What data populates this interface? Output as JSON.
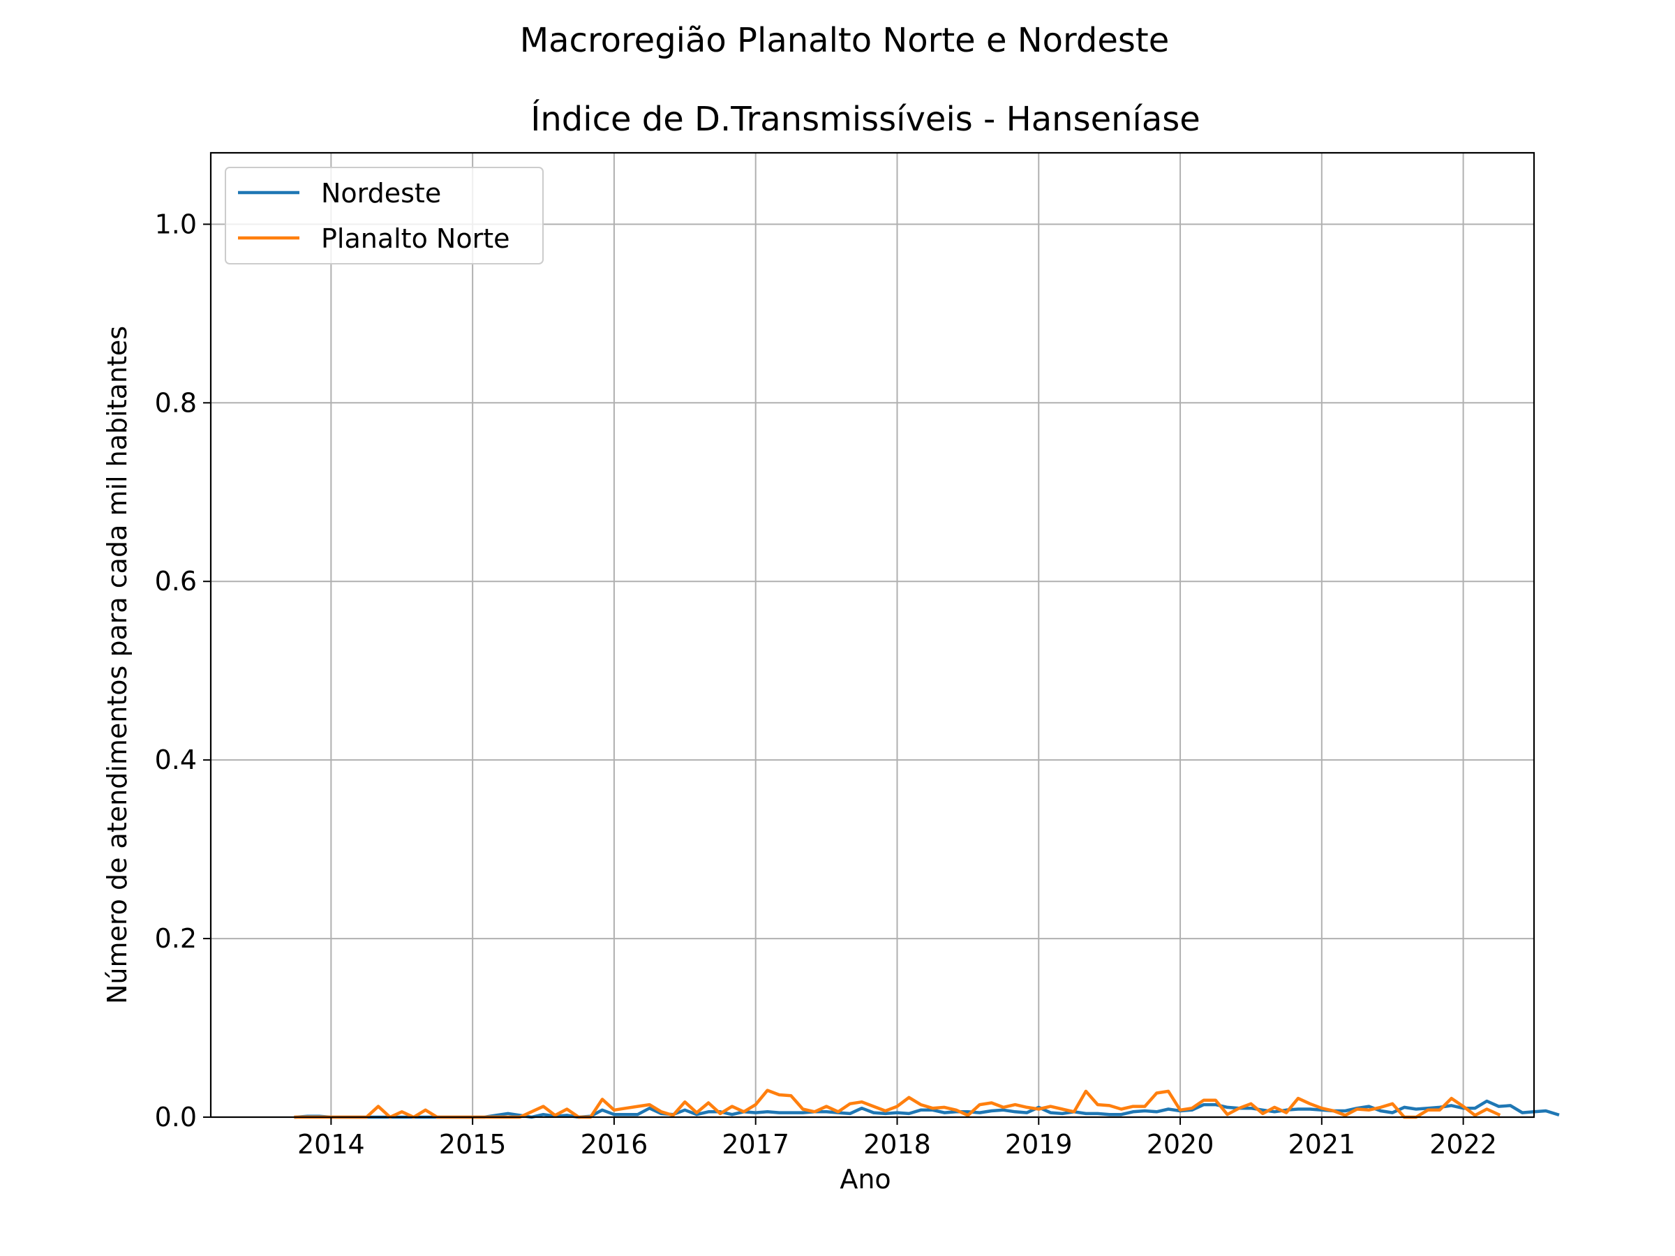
{
  "chart_data": {
    "type": "line",
    "suptitle": "Macroregião Planalto Norte e Nordeste",
    "title": "Índice de D.Transmissíveis - Hanseníase",
    "xlabel": "Ano",
    "ylabel": "Número de atendimentos para cada mil habitantes",
    "xlim": [
      2013.15,
      2022.5
    ],
    "ylim": [
      0,
      1.08
    ],
    "x_ticks": [
      2014,
      2015,
      2016,
      2017,
      2018,
      2019,
      2020,
      2021,
      2022
    ],
    "x_tick_labels": [
      "2014",
      "2015",
      "2016",
      "2017",
      "2018",
      "2019",
      "2020",
      "2021",
      "2022"
    ],
    "y_ticks": [
      0.0,
      0.2,
      0.4,
      0.6,
      0.8,
      1.0
    ],
    "y_tick_labels": [
      "0.0",
      "0.2",
      "0.4",
      "0.6",
      "0.8",
      "1.0"
    ],
    "grid": true,
    "legend_position": "upper-left",
    "x_start": "2013-10",
    "x_step": "monthly",
    "series": [
      {
        "name": "Nordeste",
        "color": "#1f77b4",
        "values": [
          0,
          0.001,
          0.001,
          0,
          0,
          0,
          0,
          0,
          0,
          0,
          0,
          0,
          0,
          0,
          0,
          0,
          0,
          0.002,
          0.004,
          0.002,
          0,
          0.003,
          0.001,
          0.002,
          0,
          0.001,
          0.008,
          0.003,
          0.003,
          0.003,
          0.01,
          0.004,
          0.003,
          0.008,
          0.003,
          0.006,
          0.006,
          0.003,
          0.006,
          0.005,
          0.006,
          0.005,
          0.005,
          0.005,
          0.006,
          0.006,
          0.005,
          0.004,
          0.01,
          0.005,
          0.004,
          0.005,
          0.004,
          0.008,
          0.008,
          0.005,
          0.006,
          0.006,
          0.005,
          0.007,
          0.008,
          0.006,
          0.005,
          0.011,
          0.005,
          0.004,
          0.006,
          0.004,
          0.004,
          0.003,
          0.003,
          0.006,
          0.007,
          0.006,
          0.009,
          0.007,
          0.008,
          0.014,
          0.014,
          0.011,
          0.01,
          0.01,
          0.008,
          0.006,
          0.008,
          0.009,
          0.009,
          0.008,
          0.007,
          0.007,
          0.01,
          0.012,
          0.007,
          0.005,
          0.011,
          0.009,
          0.01,
          0.011,
          0.013,
          0.01,
          0.01,
          0.018,
          0.012,
          0.013,
          0.005,
          0.006,
          0.007,
          0.003
        ]
      },
      {
        "name": "Planalto Norte",
        "color": "#ff7f0e",
        "values": [
          0,
          0,
          0,
          0,
          0,
          0,
          0,
          0.012,
          0,
          0.006,
          0,
          0.008,
          0,
          0,
          0,
          0,
          0,
          0,
          0,
          0,
          0.006,
          0.012,
          0.002,
          0.009,
          0,
          0,
          0.02,
          0.008,
          0.01,
          0.012,
          0.014,
          0.006,
          0.002,
          0.017,
          0.005,
          0.016,
          0.004,
          0.012,
          0.006,
          0.014,
          0.03,
          0.025,
          0.024,
          0.009,
          0.006,
          0.012,
          0.006,
          0.015,
          0.017,
          0.012,
          0.007,
          0.012,
          0.022,
          0.014,
          0.01,
          0.011,
          0.008,
          0.002,
          0.014,
          0.016,
          0.011,
          0.014,
          0.011,
          0.009,
          0.012,
          0.009,
          0.006,
          0.029,
          0.014,
          0.013,
          0.009,
          0.012,
          0.012,
          0.027,
          0.029,
          0.008,
          0.01,
          0.019,
          0.019,
          0.003,
          0.01,
          0.015,
          0.004,
          0.011,
          0.005,
          0.021,
          0.015,
          0.01,
          0.007,
          0.002,
          0.009,
          0.008,
          0.011,
          0.015,
          0,
          0,
          0.008,
          0.008,
          0.021,
          0.012,
          0.002,
          0.009,
          0.003
        ]
      }
    ]
  }
}
